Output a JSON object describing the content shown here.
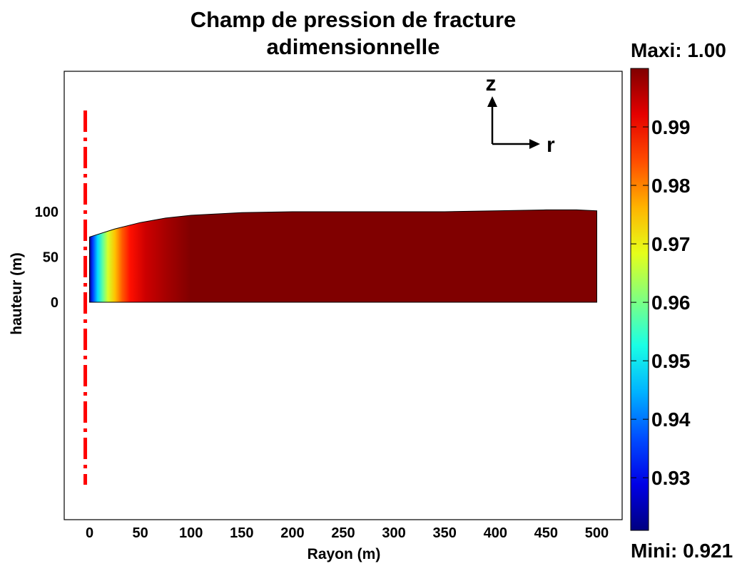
{
  "chart_data": {
    "type": "heatmap",
    "title_line1": "Champ de pression de fracture",
    "title_line2": "adimensionnelle",
    "xlabel": "Rayon (m)",
    "ylabel": "hauteur (m)",
    "xlim": [
      -25,
      525
    ],
    "ylim": [
      -240,
      255
    ],
    "x_ticks": [
      0,
      50,
      100,
      150,
      200,
      250,
      300,
      350,
      400,
      450,
      500
    ],
    "y_ticks": [
      0,
      50,
      100
    ],
    "fracture_profile": {
      "r": [
        0,
        25,
        50,
        75,
        100,
        150,
        200,
        250,
        300,
        350,
        400,
        450,
        480,
        500
      ],
      "height": [
        72,
        81,
        88,
        93,
        96,
        99,
        100,
        100,
        100,
        100,
        101,
        102,
        102,
        101
      ]
    },
    "pressure_profile_along_r": {
      "r": [
        0,
        3,
        8,
        13,
        18,
        25,
        32,
        40,
        55,
        75,
        100,
        500
      ],
      "value": [
        0.921,
        0.935,
        0.948,
        0.958,
        0.967,
        0.975,
        0.983,
        0.989,
        0.994,
        0.997,
        1.0,
        1.0
      ]
    },
    "colorbar": {
      "label_max": "Maxi: 1.00",
      "label_min": "Mini: 0.921",
      "min": 0.921,
      "max": 1.0,
      "ticks": [
        "0.99",
        "0.98",
        "0.97",
        "0.96",
        "0.95",
        "0.94",
        "0.93"
      ],
      "tick_values": [
        0.99,
        0.98,
        0.97,
        0.96,
        0.95,
        0.94,
        0.93
      ],
      "colormap": "jet"
    },
    "axis_line": {
      "r": 0,
      "style": "dash-dot",
      "color": "#ff0000"
    },
    "orientation_labels": {
      "z": "z",
      "r": "r"
    }
  }
}
